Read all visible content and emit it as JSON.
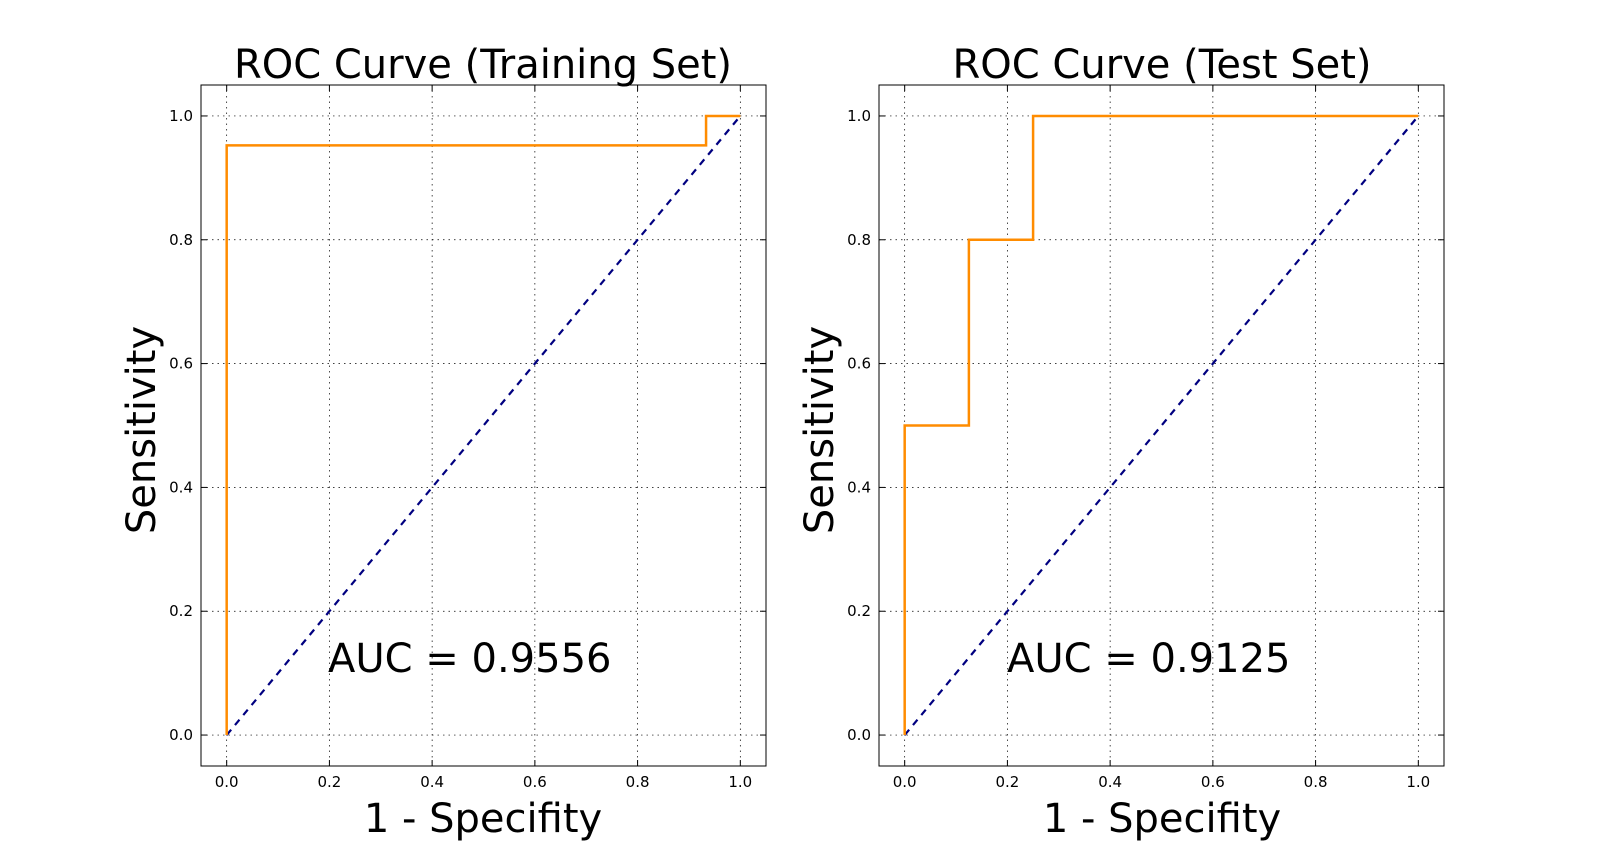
{
  "chart_data": [
    {
      "type": "line",
      "title": "ROC Curve (Training Set)",
      "xlabel": "1 - Specifity",
      "ylabel": "Sensitivity",
      "xlim": [
        -0.05,
        1.05
      ],
      "ylim": [
        -0.05,
        1.05
      ],
      "xticks": [
        "0.0",
        "0.2",
        "0.4",
        "0.6",
        "0.8",
        "1.0"
      ],
      "yticks": [
        "0.0",
        "0.2",
        "0.4",
        "0.6",
        "0.8",
        "1.0"
      ],
      "grid": true,
      "annotation": "AUC = 0.9556",
      "series": [
        {
          "color": "#ff8c00",
          "style": "solid",
          "x": [
            0.0,
            0.0,
            0.9333,
            0.9333,
            1.0
          ],
          "y": [
            0.0,
            0.9524,
            0.9524,
            1.0,
            1.0
          ]
        },
        {
          "color": "#000080",
          "style": "dashed",
          "x": [
            0.0,
            1.0
          ],
          "y": [
            0.0,
            1.0
          ]
        }
      ]
    },
    {
      "type": "line",
      "title": "ROC Curve (Test Set)",
      "xlabel": "1 - Specifity",
      "ylabel": "Sensitivity",
      "xlim": [
        -0.05,
        1.05
      ],
      "ylim": [
        -0.05,
        1.05
      ],
      "xticks": [
        "0.0",
        "0.2",
        "0.4",
        "0.6",
        "0.8",
        "1.0"
      ],
      "yticks": [
        "0.0",
        "0.2",
        "0.4",
        "0.6",
        "0.8",
        "1.0"
      ],
      "grid": true,
      "annotation": "AUC = 0.9125",
      "series": [
        {
          "color": "#ff8c00",
          "style": "solid",
          "x": [
            0.0,
            0.0,
            0.125,
            0.125,
            0.25,
            0.25,
            1.0
          ],
          "y": [
            0.0,
            0.5,
            0.5,
            0.8,
            0.8,
            1.0,
            1.0
          ]
        },
        {
          "color": "#000080",
          "style": "dashed",
          "x": [
            0.0,
            1.0
          ],
          "y": [
            0.0,
            1.0
          ]
        }
      ]
    }
  ]
}
